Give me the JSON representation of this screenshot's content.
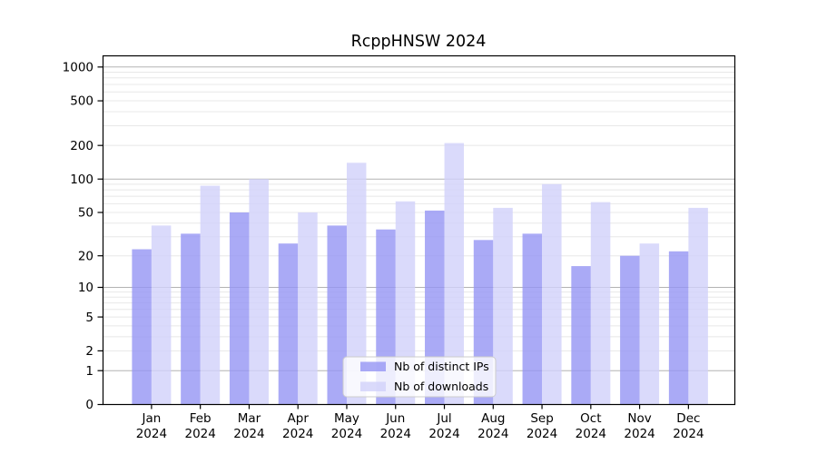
{
  "title": "RcppHNSW 2024",
  "chart_data": {
    "type": "bar",
    "title": "RcppHNSW 2024",
    "x": {
      "categories": [
        "Jan",
        "Feb",
        "Mar",
        "Apr",
        "May",
        "Jun",
        "Jul",
        "Aug",
        "Sep",
        "Oct",
        "Nov",
        "Dec"
      ],
      "year_label": "2024"
    },
    "series": [
      {
        "name": "Nb of distinct IPs",
        "color": "#9595f4",
        "values": [
          23,
          32,
          50,
          26,
          38,
          35,
          52,
          28,
          32,
          16,
          20,
          22
        ]
      },
      {
        "name": "Nb of downloads",
        "color": "#d1d1fa",
        "values": [
          38,
          87,
          100,
          50,
          140,
          63,
          210,
          55,
          90,
          62,
          26,
          55
        ]
      }
    ],
    "yscale": "log1p",
    "yticks": [
      0,
      1,
      2,
      5,
      10,
      20,
      50,
      100,
      200,
      500,
      1000
    ],
    "grid_major_at": [
      1,
      10,
      100,
      1000
    ],
    "ylim": [
      0,
      1230
    ],
    "grid": true,
    "legend_position": "lower center"
  }
}
